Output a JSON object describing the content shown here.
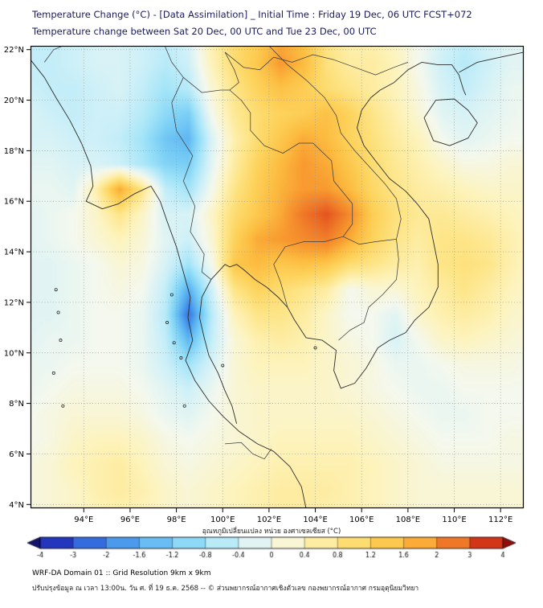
{
  "header": {
    "title_line1": "Temperature Change (°C) - [Data Assimilation] _ Initial Time : Friday 19 Dec, 06 UTC FCST+072",
    "title_line2": "Temperature change between Sat 20 Dec, 00 UTC and Tue 23 Dec, 00 UTC"
  },
  "footer": {
    "line1": "WRF-DA Domain 01 :: Grid Resolution 9km x 9km",
    "line2": "ปรับปรุงข้อมูล ณ เวลา 13:00น. วัน ศ. ที่ 19 ธ.ค. 2568 -- © ส่วนพยากรณ์อากาศเชิงตัวเลข กองพยากรณ์อากาศ กรมอุตุนิยมวิทยา"
  },
  "chart_data": {
    "type": "heatmap",
    "title": "Temperature Change (°C) - [Data Assimilation]",
    "subtitle": "Temperature change between Sat 20 Dec, 00 UTC and Tue 23 Dec, 00 UTC",
    "xlabel": "",
    "ylabel": "",
    "lon_range": [
      91.7,
      113.0
    ],
    "lat_range": [
      3.85,
      22.15
    ],
    "x_ticks": {
      "values": [
        94,
        96,
        98,
        100,
        102,
        104,
        106,
        108,
        110,
        112
      ],
      "labels": [
        "94°E",
        "96°E",
        "98°E",
        "100°E",
        "102°E",
        "104°E",
        "106°E",
        "108°E",
        "110°E",
        "112°E"
      ]
    },
    "y_ticks": {
      "values": [
        4,
        6,
        8,
        10,
        12,
        14,
        16,
        18,
        20,
        22
      ],
      "labels": [
        "4°N",
        "6°N",
        "8°N",
        "10°N",
        "12°N",
        "14°N",
        "16°N",
        "18°N",
        "20°N",
        "22°N"
      ]
    },
    "grid_on": true,
    "colormap": {
      "values": [
        -4,
        -3,
        -2,
        -1.6,
        -1.2,
        -0.8,
        -0.4,
        0,
        0.4,
        0.8,
        1.2,
        1.6,
        2,
        3,
        4
      ],
      "colors": [
        "#1c1ca8",
        "#2b4fd0",
        "#3f86e8",
        "#57aef0",
        "#79cef5",
        "#a2e4f8",
        "#cef0f8",
        "#f4f8ee",
        "#fdf3bc",
        "#fde588",
        "#fdd35c",
        "#fcbc40",
        "#f89a30",
        "#e55420",
        "#c01612"
      ],
      "under_color": "#14146e",
      "over_color": "#8f0e0c"
    },
    "colorbar": {
      "label": "อุณหภูมิเปลี่ยนแปลง หน่วย องศาเซลเซียส (°C)",
      "tick_values": [
        -4,
        -3,
        -2,
        -1.6,
        -1.2,
        -0.8,
        -0.4,
        0,
        0.4,
        0.8,
        1.2,
        1.6,
        2,
        3,
        4
      ],
      "tick_labels": [
        "-4",
        "-3",
        "-2",
        "-1.6",
        "-1.2",
        "-0.8",
        "-0.4",
        "0",
        "0.4",
        "0.8",
        "1.2",
        "1.6",
        "2",
        "3",
        "4"
      ],
      "position": "bottom"
    },
    "grid": {
      "lons": [
        91.5,
        92.5,
        93.5,
        94.5,
        95.5,
        96.5,
        97.5,
        98.5,
        99.5,
        100.5,
        101.5,
        102.5,
        103.5,
        104.5,
        105.5,
        106.5,
        107.5,
        108.5,
        109.5,
        110.5,
        111.5,
        112.5,
        113.5
      ],
      "lats": [
        22.5,
        21.5,
        20.5,
        19.5,
        18.5,
        17.5,
        16.5,
        15.5,
        14.5,
        13.5,
        12.5,
        11.5,
        10.5,
        9.5,
        8.5,
        7.5,
        6.5,
        5.5,
        4.5,
        3.5
      ],
      "values": [
        [
          -0.5,
          -0.5,
          -0.4,
          -0.3,
          -0.3,
          -0.4,
          -0.5,
          -0.3,
          0.5,
          1.0,
          1.3,
          1.8,
          1.5,
          0.8,
          0.5,
          0.5,
          0.3,
          0.0,
          -0.3,
          -0.5,
          -0.3,
          -0.2,
          -0.2
        ],
        [
          -0.5,
          -0.5,
          -0.4,
          -0.3,
          -0.3,
          -0.4,
          -0.6,
          -0.4,
          0.4,
          1.0,
          1.4,
          2.0,
          1.6,
          0.9,
          0.6,
          0.6,
          0.4,
          0.0,
          -0.4,
          -0.6,
          -0.4,
          -0.2,
          -0.2
        ],
        [
          -0.4,
          -0.5,
          -0.5,
          -0.4,
          -0.3,
          -0.5,
          -0.8,
          -0.6,
          0.2,
          0.8,
          1.2,
          1.5,
          1.3,
          1.0,
          0.8,
          0.6,
          0.4,
          0.1,
          -0.3,
          -0.5,
          -0.3,
          -0.1,
          -0.1
        ],
        [
          -0.3,
          -0.4,
          -0.5,
          -0.4,
          -0.4,
          -0.6,
          -1.0,
          -1.2,
          0.0,
          0.7,
          1.0,
          1.2,
          1.3,
          1.5,
          1.2,
          0.8,
          0.5,
          0.2,
          -0.2,
          -0.3,
          -0.2,
          -0.1,
          0.0
        ],
        [
          -0.3,
          -0.3,
          -0.4,
          -0.4,
          -0.5,
          -0.8,
          -1.3,
          -1.5,
          -0.3,
          0.5,
          1.0,
          1.4,
          1.8,
          1.6,
          1.2,
          0.9,
          0.6,
          0.4,
          0.0,
          -0.2,
          -0.1,
          0.0,
          0.0
        ],
        [
          -0.2,
          -0.2,
          -0.3,
          -0.3,
          -0.4,
          -0.7,
          -1.1,
          -1.2,
          -0.2,
          0.6,
          1.2,
          1.6,
          2.0,
          1.8,
          1.4,
          1.0,
          0.7,
          0.5,
          0.3,
          0.1,
          0.1,
          0.2,
          0.2
        ],
        [
          -0.1,
          -0.1,
          -0.2,
          0.5,
          1.8,
          0.8,
          -0.5,
          -0.8,
          0.0,
          0.8,
          1.3,
          1.7,
          2.0,
          2.0,
          1.6,
          1.1,
          0.8,
          0.6,
          0.5,
          0.4,
          0.3,
          0.3,
          0.3
        ],
        [
          -0.2,
          -0.1,
          0.0,
          0.3,
          0.8,
          0.3,
          -0.3,
          -0.3,
          0.3,
          1.0,
          1.4,
          1.8,
          2.5,
          3.0,
          2.2,
          1.3,
          0.9,
          0.7,
          0.7,
          0.6,
          0.5,
          0.4,
          0.3
        ],
        [
          -0.2,
          -0.1,
          0.0,
          0.2,
          0.4,
          0.2,
          -0.2,
          -0.4,
          0.2,
          1.2,
          1.8,
          2.0,
          2.2,
          2.4,
          1.8,
          1.2,
          0.8,
          0.6,
          0.8,
          0.8,
          0.7,
          0.5,
          0.3
        ],
        [
          -0.2,
          -0.2,
          -0.1,
          0.0,
          0.2,
          0.1,
          -0.3,
          -0.8,
          0.0,
          1.4,
          1.6,
          1.4,
          1.5,
          1.4,
          1.0,
          0.8,
          0.6,
          0.5,
          0.8,
          0.9,
          0.8,
          0.5,
          0.3
        ],
        [
          -0.2,
          -0.2,
          -0.1,
          0.0,
          0.1,
          0.0,
          -0.5,
          -1.6,
          -0.4,
          0.8,
          1.2,
          1.0,
          0.8,
          0.6,
          0.0,
          0.2,
          0.2,
          0.4,
          0.6,
          0.8,
          0.6,
          0.4,
          0.2
        ],
        [
          -0.2,
          -0.2,
          -0.1,
          0.0,
          0.0,
          -0.1,
          -0.6,
          -2.2,
          -0.6,
          0.4,
          0.8,
          0.8,
          0.6,
          0.3,
          0.0,
          0.0,
          -0.2,
          0.3,
          0.5,
          0.6,
          0.5,
          0.3,
          0.2
        ],
        [
          -0.2,
          -0.1,
          -0.1,
          0.0,
          0.0,
          -0.1,
          -0.5,
          -1.5,
          -0.5,
          0.2,
          0.5,
          0.6,
          0.5,
          0.3,
          0.1,
          0.0,
          -0.3,
          0.0,
          0.3,
          0.4,
          0.3,
          0.2,
          0.1
        ],
        [
          -0.1,
          -0.1,
          0.0,
          0.0,
          0.0,
          -0.1,
          -0.4,
          -0.8,
          -0.3,
          0.2,
          0.4,
          0.4,
          0.4,
          0.3,
          0.2,
          0.1,
          -0.1,
          -0.1,
          0.0,
          0.1,
          0.1,
          0.1,
          0.0
        ],
        [
          -0.1,
          0.0,
          0.1,
          0.1,
          0.1,
          0.0,
          -0.2,
          -0.4,
          -0.1,
          0.2,
          0.3,
          0.3,
          0.3,
          0.3,
          0.2,
          0.1,
          0.0,
          -0.1,
          -0.1,
          0.0,
          0.0,
          0.0,
          0.0
        ],
        [
          0.0,
          0.1,
          0.2,
          0.2,
          0.2,
          0.1,
          -0.1,
          -0.2,
          0.0,
          0.2,
          0.3,
          0.3,
          0.3,
          0.3,
          0.3,
          0.2,
          0.1,
          0.0,
          -0.1,
          -0.1,
          0.0,
          0.0,
          0.0
        ],
        [
          0.0,
          0.1,
          0.3,
          0.4,
          0.4,
          0.3,
          0.1,
          0.0,
          0.1,
          0.2,
          0.3,
          0.4,
          0.4,
          0.4,
          0.4,
          0.3,
          0.2,
          0.1,
          0.0,
          0.0,
          0.0,
          0.1,
          0.1
        ],
        [
          0.1,
          0.2,
          0.4,
          0.5,
          0.6,
          0.4,
          0.2,
          0.1,
          0.2,
          0.3,
          0.4,
          0.5,
          0.5,
          0.5,
          0.5,
          0.4,
          0.3,
          0.2,
          0.1,
          0.1,
          0.1,
          0.1,
          0.1
        ],
        [
          0.1,
          0.2,
          0.3,
          0.5,
          0.6,
          0.5,
          0.3,
          0.2,
          0.3,
          0.4,
          0.5,
          0.6,
          0.6,
          0.6,
          0.5,
          0.4,
          0.3,
          0.2,
          0.2,
          0.2,
          0.2,
          0.2,
          0.2
        ],
        [
          0.1,
          0.2,
          0.3,
          0.4,
          0.5,
          0.4,
          0.3,
          0.2,
          0.3,
          0.4,
          0.5,
          0.6,
          0.6,
          0.5,
          0.5,
          0.4,
          0.3,
          0.2,
          0.2,
          0.2,
          0.2,
          0.2,
          0.2
        ]
      ]
    }
  }
}
